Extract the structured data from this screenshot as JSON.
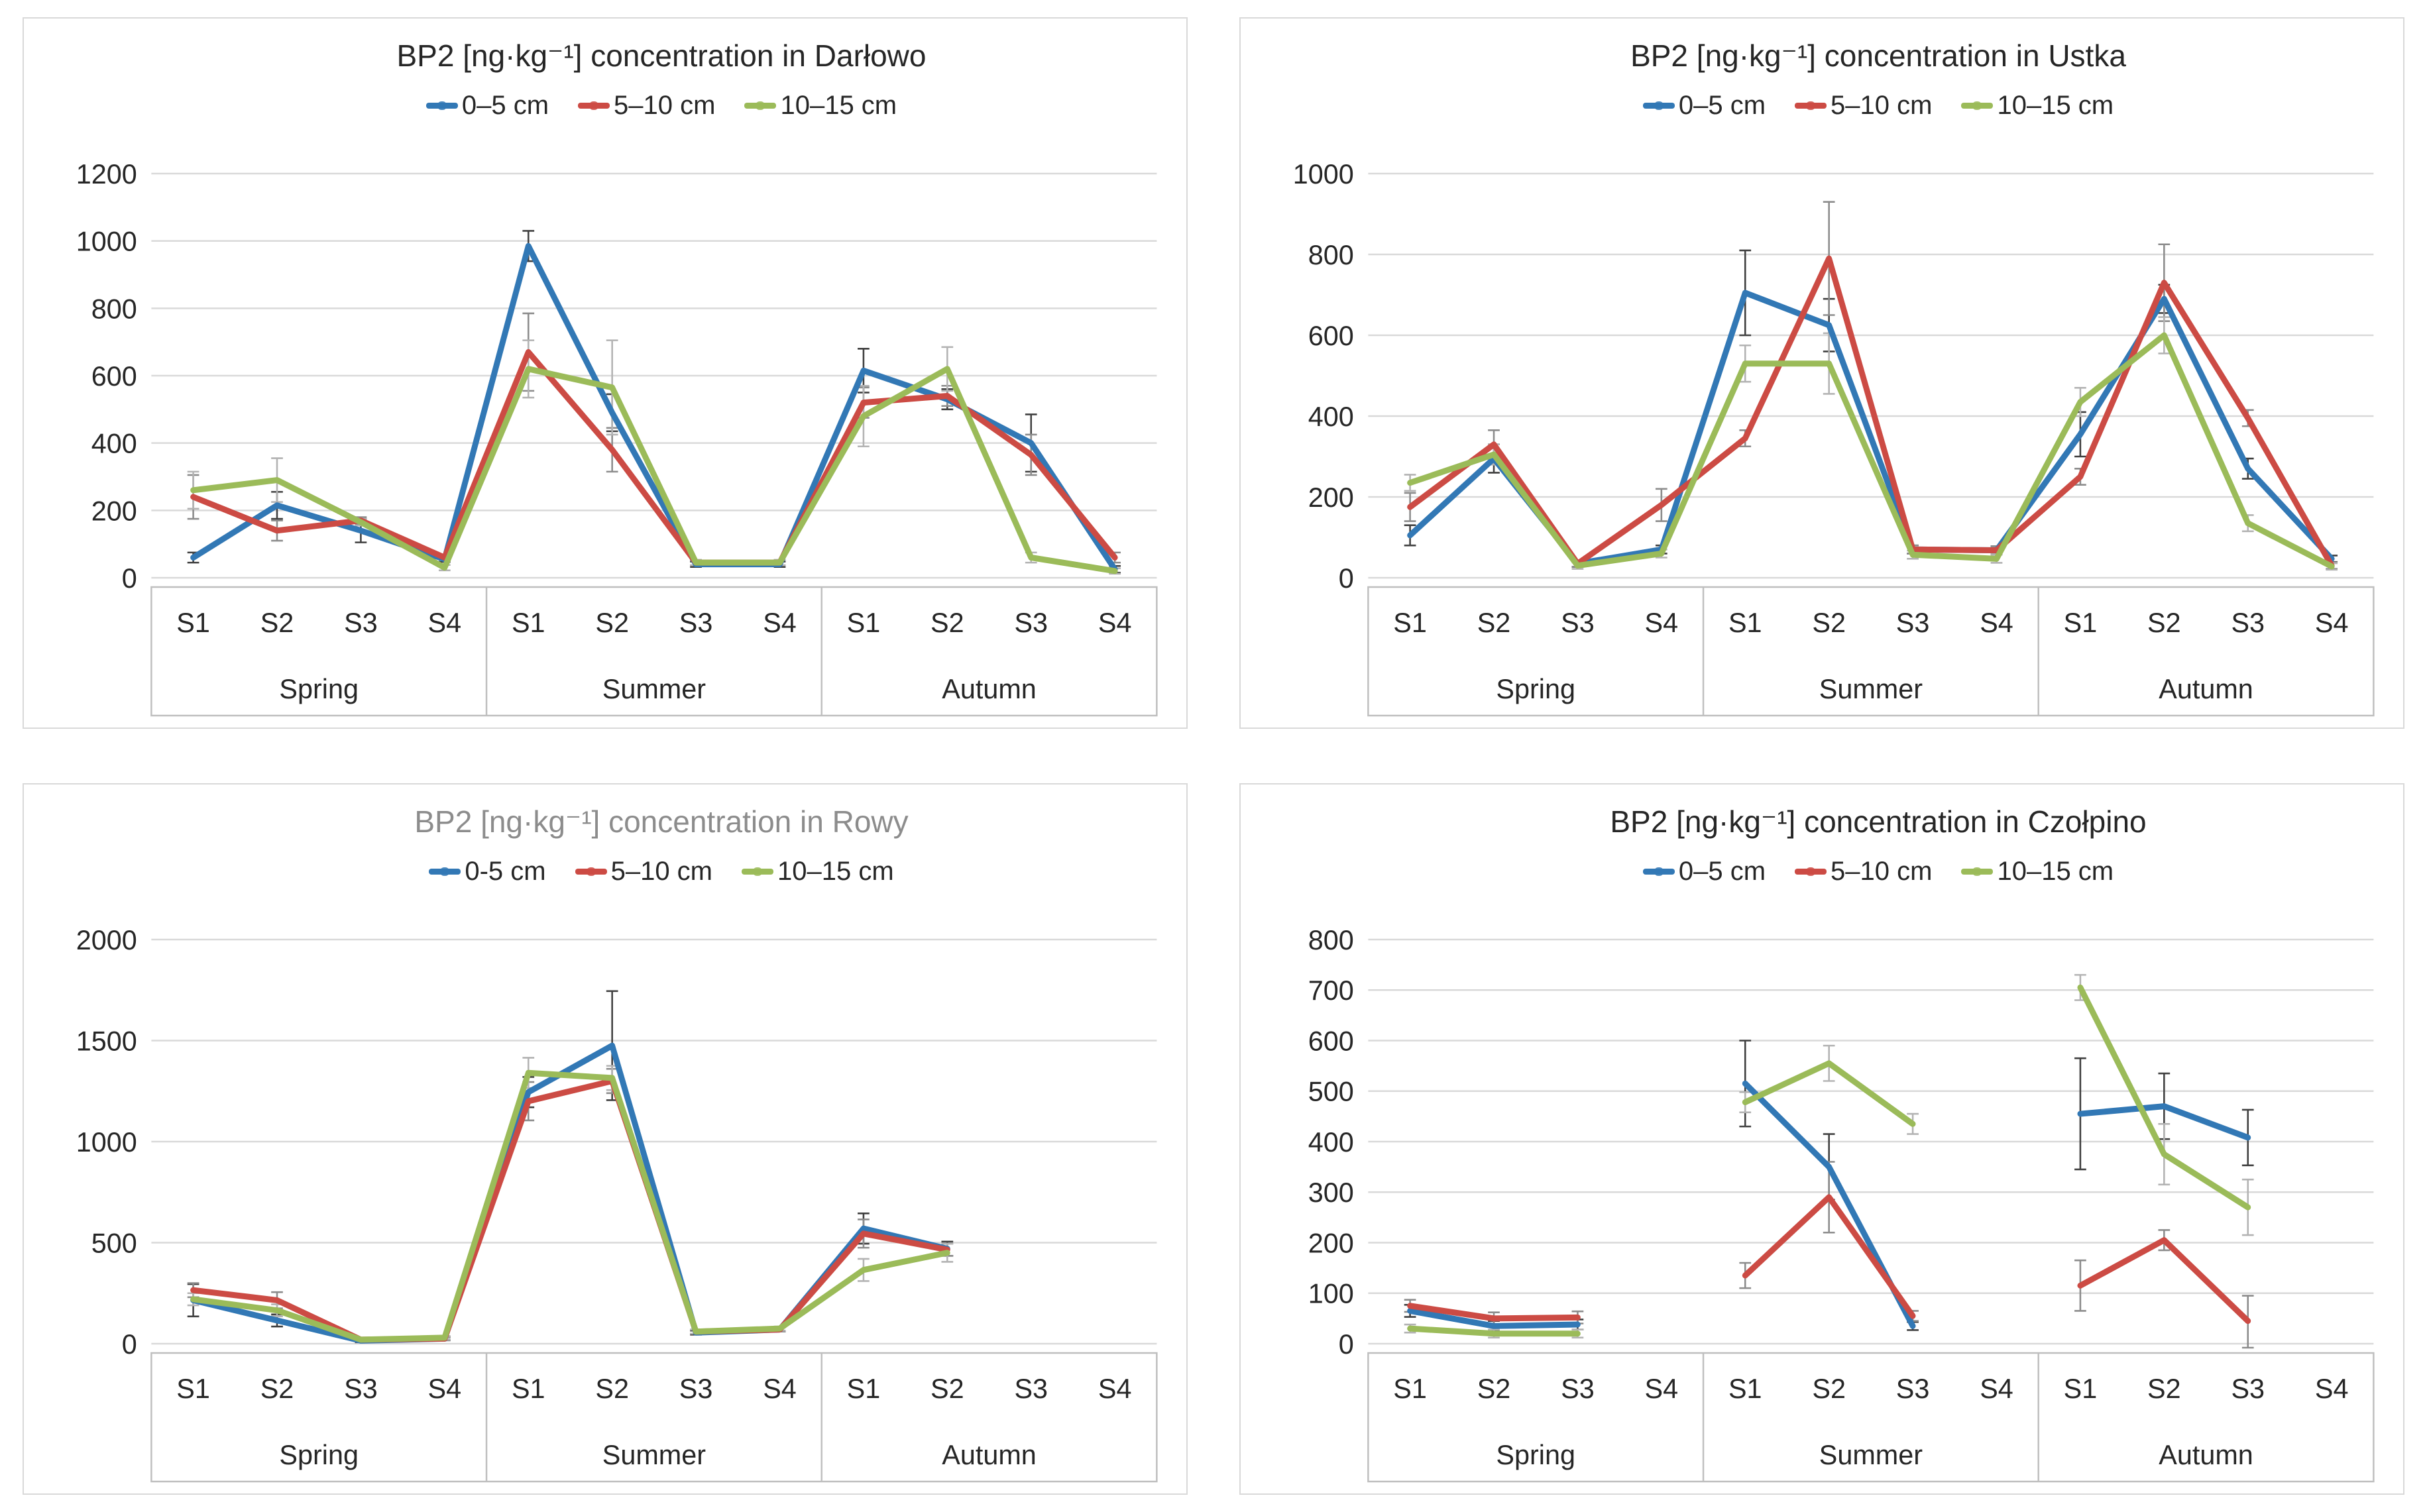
{
  "page": {
    "background": "#ffffff",
    "panel_border_color": "#d9d9d9",
    "gridline_color": "#d9d9d9",
    "axis_box_color": "#bfbfbf",
    "text_color": "#262626"
  },
  "chart_data": [
    {
      "type": "line",
      "title": "BP2 [ng·kg⁻¹] concentration in Darłowo",
      "title_color": "#262626",
      "ylim": [
        0,
        1200
      ],
      "ystep": 200,
      "yticks": [
        "0",
        "200",
        "400",
        "600",
        "800",
        "1000",
        "1200"
      ],
      "grid": true,
      "legend_position": "top",
      "legend": [
        "0–5 cm",
        "5–10 cm",
        "10–15 cm"
      ],
      "seasons": [
        "Spring",
        "Summer",
        "Autumn"
      ],
      "stations": [
        "S1",
        "S2",
        "S3",
        "S4"
      ],
      "series": [
        {
          "name": "0–5 cm",
          "color": "#3278b5",
          "errbar_color": "#404040",
          "values": [
            [
              60,
              215,
              140,
              55
            ],
            [
              985,
              490,
              40,
              40
            ],
            [
              615,
              530,
              400,
              25
            ]
          ],
          "errors": [
            [
              15,
              40,
              35,
              8
            ],
            [
              45,
              55,
              8,
              8
            ],
            [
              65,
              30,
              85,
              10
            ]
          ]
        },
        {
          "name": "5–10 cm",
          "color": "#cc4b44",
          "errbar_color": "#8c8c8c",
          "values": [
            [
              240,
              140,
              170,
              60
            ],
            [
              670,
              380,
              45,
              45
            ],
            [
              520,
              540,
              365,
              60
            ]
          ],
          "errors": [
            [
              65,
              30,
              10,
              8
            ],
            [
              115,
              65,
              8,
              8
            ],
            [
              45,
              30,
              60,
              15
            ]
          ]
        },
        {
          "name": "10–15 cm",
          "color": "#9bbb59",
          "errbar_color": "#b3b3b3",
          "values": [
            [
              260,
              290,
              165,
              30
            ],
            [
              620,
              565,
              45,
              45
            ],
            [
              480,
              620,
              60,
              20
            ]
          ],
          "errors": [
            [
              55,
              65,
              10,
              8
            ],
            [
              85,
              140,
              8,
              8
            ],
            [
              90,
              65,
              15,
              8
            ]
          ]
        }
      ]
    },
    {
      "type": "line",
      "title": "BP2 [ng·kg⁻¹] concentration in Ustka",
      "title_color": "#262626",
      "ylim": [
        0,
        1000
      ],
      "ystep": 200,
      "yticks": [
        "0",
        "200",
        "400",
        "600",
        "800",
        "1000"
      ],
      "grid": true,
      "legend_position": "top",
      "legend": [
        "0–5 cm",
        "5–10 cm",
        "10–15 cm"
      ],
      "seasons": [
        "Spring",
        "Summer",
        "Autumn"
      ],
      "stations": [
        "S1",
        "S2",
        "S3",
        "S4"
      ],
      "series": [
        {
          "name": "0–5 cm",
          "color": "#3278b5",
          "errbar_color": "#404040",
          "values": [
            [
              105,
              295,
              35,
              70
            ],
            [
              705,
              625,
              70,
              68
            ],
            [
              355,
              690,
              270,
              47
            ]
          ],
          "errors": [
            [
              25,
              35,
              8,
              10
            ],
            [
              105,
              65,
              10,
              10
            ],
            [
              55,
              35,
              25,
              8
            ]
          ]
        },
        {
          "name": "5–10 cm",
          "color": "#cc4b44",
          "errbar_color": "#8c8c8c",
          "values": [
            [
              175,
              330,
              35,
              180
            ],
            [
              345,
              790,
              70,
              68
            ],
            [
              250,
              730,
              395,
              30
            ]
          ],
          "errors": [
            [
              35,
              35,
              8,
              40
            ],
            [
              20,
              140,
              10,
              10
            ],
            [
              20,
              95,
              20,
              8
            ]
          ]
        },
        {
          "name": "10–15 cm",
          "color": "#9bbb59",
          "errbar_color": "#b3b3b3",
          "values": [
            [
              235,
              305,
              30,
              60
            ],
            [
              530,
              530,
              57,
              47
            ],
            [
              435,
              600,
              135,
              28
            ]
          ],
          "errors": [
            [
              20,
              25,
              8,
              10
            ],
            [
              45,
              75,
              10,
              10
            ],
            [
              35,
              45,
              20,
              8
            ]
          ]
        }
      ]
    },
    {
      "type": "line",
      "title": "BP2 [ng·kg⁻¹] concentration in Rowy",
      "title_color": "#8c8c8c",
      "ylim": [
        0,
        2000
      ],
      "ystep": 500,
      "yticks": [
        "0",
        "500",
        "1000",
        "1500",
        "2000"
      ],
      "grid": true,
      "legend_position": "top",
      "legend": [
        "0-5 cm",
        "5–10 cm",
        "10–15 cm"
      ],
      "seasons": [
        "Spring",
        "Summer",
        "Autumn"
      ],
      "stations": [
        "S1",
        "S2",
        "S3",
        "S4"
      ],
      "series": [
        {
          "name": "0-5 cm",
          "color": "#3278b5",
          "errbar_color": "#404040",
          "values": [
            [
              215,
              115,
              15,
              25
            ],
            [
              1245,
              1475,
              55,
              70
            ],
            [
              570,
              470,
              null,
              null
            ]
          ],
          "errors": [
            [
              80,
              30,
              8,
              8
            ],
            [
              75,
              270,
              10,
              10
            ],
            [
              75,
              35,
              null,
              null
            ]
          ]
        },
        {
          "name": "5–10 cm",
          "color": "#cc4b44",
          "errbar_color": "#8c8c8c",
          "values": [
            [
              265,
              215,
              20,
              25
            ],
            [
              1200,
              1300,
              60,
              70
            ],
            [
              545,
              465,
              null,
              null
            ]
          ],
          "errors": [
            [
              35,
              40,
              8,
              8
            ],
            [
              95,
              60,
              10,
              10
            ],
            [
              70,
              30,
              null,
              null
            ]
          ]
        },
        {
          "name": "10–15 cm",
          "color": "#9bbb59",
          "errbar_color": "#b3b3b3",
          "values": [
            [
              220,
              165,
              20,
              30
            ],
            [
              1340,
              1315,
              60,
              75
            ],
            [
              365,
              450,
              null,
              null
            ]
          ],
          "errors": [
            [
              30,
              30,
              8,
              8
            ],
            [
              75,
              60,
              10,
              10
            ],
            [
              55,
              45,
              null,
              null
            ]
          ]
        }
      ]
    },
    {
      "type": "line",
      "title": "BP2 [ng·kg⁻¹] concentration in Czołpino",
      "title_color": "#262626",
      "ylim": [
        0,
        800
      ],
      "ystep": 100,
      "yticks": [
        "0",
        "100",
        "200",
        "300",
        "400",
        "500",
        "600",
        "700",
        "800"
      ],
      "grid": true,
      "legend_position": "top",
      "legend": [
        "0–5 cm",
        "5–10 cm",
        "10–15 cm"
      ],
      "seasons": [
        "Spring",
        "Summer",
        "Autumn"
      ],
      "stations": [
        "S1",
        "S2",
        "S3",
        "S4"
      ],
      "series": [
        {
          "name": "0–5 cm",
          "color": "#3278b5",
          "errbar_color": "#404040",
          "values": [
            [
              65,
              35,
              38,
              null
            ],
            [
              515,
              350,
              35,
              null
            ],
            [
              455,
              470,
              408,
              null
            ]
          ],
          "errors": [
            [
              12,
              10,
              10,
              null
            ],
            [
              85,
              65,
              8,
              null
            ],
            [
              110,
              65,
              55,
              null
            ]
          ]
        },
        {
          "name": "5–10 cm",
          "color": "#cc4b44",
          "errbar_color": "#8c8c8c",
          "values": [
            [
              75,
              50,
              52,
              null
            ],
            [
              135,
              290,
              55,
              null
            ],
            [
              115,
              205,
              45,
              null
            ]
          ],
          "errors": [
            [
              12,
              12,
              12,
              null
            ],
            [
              25,
              70,
              10,
              null
            ],
            [
              50,
              20,
              50,
              null
            ]
          ]
        },
        {
          "name": "10–15 cm",
          "color": "#9bbb59",
          "errbar_color": "#b3b3b3",
          "values": [
            [
              30,
              20,
              20,
              null
            ],
            [
              478,
              555,
              435,
              null
            ],
            [
              705,
              375,
              270,
              null
            ]
          ],
          "errors": [
            [
              8,
              8,
              8,
              null
            ],
            [
              20,
              35,
              20,
              null
            ],
            [
              25,
              60,
              55,
              null
            ]
          ]
        }
      ]
    }
  ]
}
